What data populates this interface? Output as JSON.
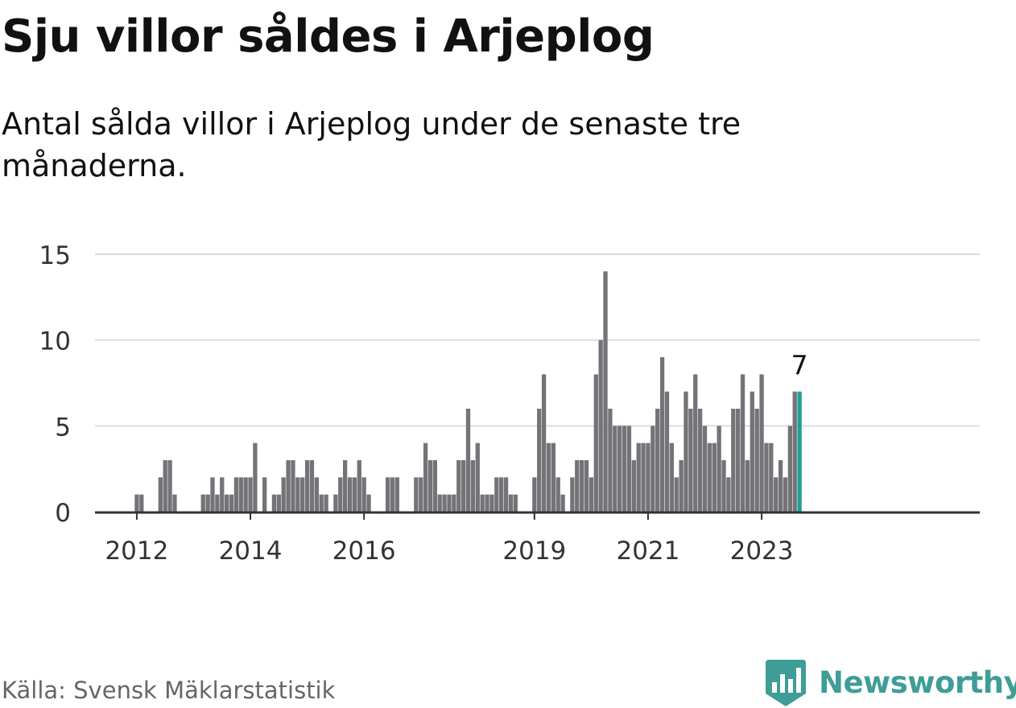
{
  "header": {
    "title": "Sju villor såldes i Arjeplog",
    "subtitle": "Antal sålda villor i Arjeplog under de senaste tre månaderna."
  },
  "footer": {
    "source": "Källa: Svensk Mäklarstatistik",
    "brand": "Newsworthy",
    "brand_icon": "bar-chart-icon"
  },
  "colors": {
    "bar": "#747378",
    "highlight": "#1f9e97",
    "grid": "#dcdcdc",
    "axis": "#333333",
    "brand": "#3f9d97"
  },
  "chart_data": {
    "type": "bar",
    "start": "2011-01",
    "ylim": [
      0,
      15
    ],
    "yticks": [
      0,
      5,
      10,
      15
    ],
    "xticks": [
      {
        "label": "2012",
        "index": 12
      },
      {
        "label": "2014",
        "index": 36
      },
      {
        "label": "2016",
        "index": 60
      },
      {
        "label": "2019",
        "index": 96
      },
      {
        "label": "2021",
        "index": 120
      },
      {
        "label": "2023",
        "index": 144
      }
    ],
    "values": [
      0,
      0,
      0,
      0,
      0,
      0,
      0,
      0,
      0,
      0,
      0,
      0,
      1,
      1,
      0,
      0,
      0,
      2,
      3,
      3,
      1,
      0,
      0,
      0,
      0,
      0,
      1,
      1,
      2,
      1,
      2,
      1,
      1,
      2,
      2,
      2,
      2,
      4,
      0,
      2,
      0,
      1,
      1,
      2,
      3,
      3,
      2,
      2,
      3,
      3,
      2,
      1,
      1,
      0,
      1,
      2,
      3,
      2,
      2,
      3,
      2,
      1,
      0,
      0,
      0,
      2,
      2,
      2,
      0,
      0,
      0,
      2,
      2,
      4,
      3,
      3,
      1,
      1,
      1,
      1,
      3,
      3,
      6,
      3,
      4,
      1,
      1,
      1,
      2,
      2,
      2,
      1,
      1,
      0,
      0,
      0,
      2,
      6,
      8,
      4,
      4,
      2,
      1,
      0,
      2,
      3,
      3,
      3,
      2,
      8,
      10,
      14,
      6,
      5,
      5,
      5,
      5,
      3,
      4,
      4,
      4,
      5,
      6,
      9,
      7,
      4,
      2,
      3,
      7,
      6,
      8,
      6,
      5,
      4,
      4,
      5,
      3,
      2,
      6,
      6,
      8,
      3,
      7,
      6,
      8,
      4,
      4,
      2,
      3,
      2,
      5,
      7,
      7
    ],
    "highlight_index": 152,
    "annotation": "7"
  }
}
